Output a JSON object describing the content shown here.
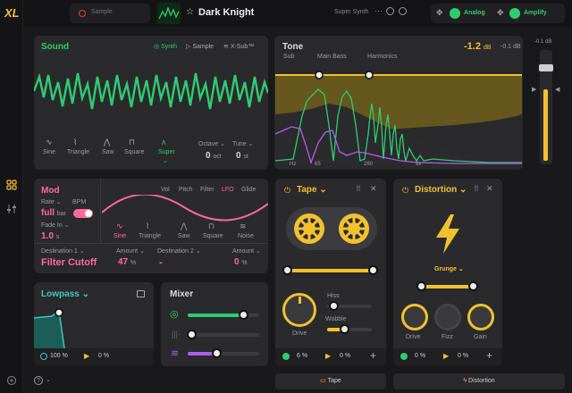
{
  "app": {
    "logo": "XL",
    "preset_name": "Dark Knight",
    "preset_category": "Super Synth"
  },
  "topbar": {
    "sample_label": "Sample",
    "fx1_label": "Analog",
    "fx2_label": "Amplify"
  },
  "sound": {
    "title": "Sound",
    "modes": [
      "Synth",
      "Sample",
      "X-Sub™"
    ],
    "waves": [
      "Sine",
      "Triangle",
      "Saw",
      "Square",
      "Super"
    ],
    "octave_label": "Octave",
    "octave_value": "0",
    "octave_unit": "oct",
    "tune_label": "Tune",
    "tune_value": "0",
    "tune_unit": "st"
  },
  "tone": {
    "title": "Tone",
    "gain_value": "-1.2",
    "gain_unit": "dB",
    "peak": "-0.1 dB",
    "bands": [
      "Sub",
      "Main Bass",
      "Harmonics"
    ],
    "freq_labels": [
      "Hz",
      "65",
      "260",
      "1k"
    ],
    "meter_peak": "-0.1 dB"
  },
  "mod": {
    "title": "Mod",
    "rate_label": "Rate",
    "rate_value": "full",
    "rate_unit": "bar",
    "bpm_label": "BPM",
    "fade_label": "Fade In",
    "fade_value": "1.0",
    "fade_unit": "s",
    "tabs": [
      "Vol",
      "Pitch",
      "Filter",
      "LFO",
      "Glide"
    ],
    "waves": [
      "Sine",
      "Triangle",
      "Saw",
      "Square",
      "Noise"
    ],
    "dest1_label": "Destination 1",
    "dest1_value": "Filter Cutoff",
    "amount1_label": "Amount",
    "amount1_value": "47",
    "amount1_unit": "%",
    "dest2_label": "Destination 2",
    "dest2_value": "-",
    "amount2_label": "Amount",
    "amount2_value": "0",
    "amount2_unit": "%"
  },
  "lowpass": {
    "title": "Lowpass",
    "value1": "100 %",
    "value2": "0 %"
  },
  "mixer": {
    "title": "Mixer",
    "levels": [
      0.78,
      0.05,
      0.4
    ]
  },
  "tape": {
    "title": "Tape",
    "hiss_label": "Hiss",
    "wobble_label": "Wobble",
    "drive_label": "Drive",
    "value1": "6 %",
    "value2": "0 %",
    "tab_label": "Tape"
  },
  "distortion": {
    "title": "Distortion",
    "mode": "Grunge",
    "drive_label": "Drive",
    "fizz_label": "Fizz",
    "gain_label": "Gain",
    "value1": "0 %",
    "value2": "0 %",
    "tab_label": "Distortion"
  },
  "colors": {
    "green": "#2ecc71",
    "yellow": "#f2c12e",
    "pink": "#ff6a9a",
    "purple": "#b35cf0",
    "cyan": "#3fc8b8"
  }
}
